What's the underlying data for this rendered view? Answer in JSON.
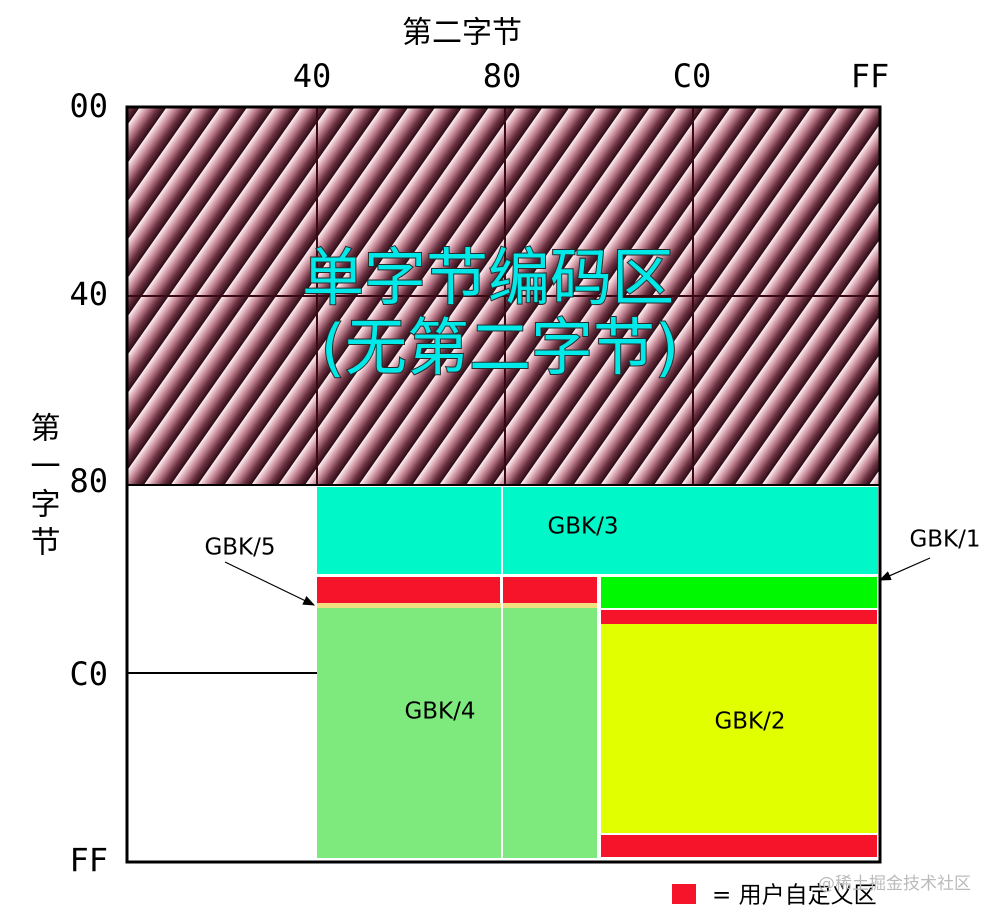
{
  "axis": {
    "x_title": "第二字节",
    "y_title": "第一字节",
    "x_ticks": [
      "40",
      "80",
      "C0",
      "FF"
    ],
    "y_ticks": [
      "00",
      "40",
      "80",
      "C0",
      "FF"
    ]
  },
  "regions": {
    "single_byte": [
      "单字节编码区",
      "(无第二字节)"
    ],
    "gbk1": "GBK/1",
    "gbk2": "GBK/2",
    "gbk3": "GBK/3",
    "gbk4": "GBK/4",
    "gbk5": "GBK/5"
  },
  "legend": "= 用户自定义区",
  "watermark": "@稀土掘金技术社区"
}
